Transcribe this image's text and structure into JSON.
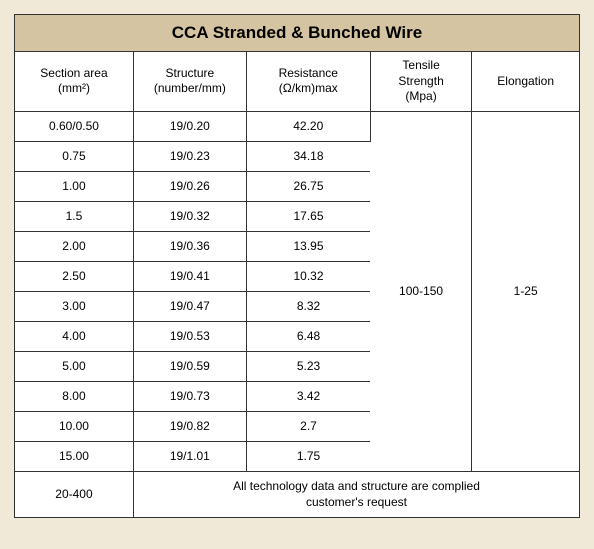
{
  "title": "CCA Stranded &  Bunched Wire",
  "columns": [
    {
      "label_line1": "Section area",
      "label_line2": "(mm²)"
    },
    {
      "label_line1": "Structure",
      "label_line2": "(number/mm)"
    },
    {
      "label_line1": "Resistance",
      "label_line2": "(Ω/km)max"
    },
    {
      "label_line1": "Tensile",
      "label_line2": "Strength",
      "label_line3": "(Mpa)"
    },
    {
      "label_line1": "Elongation",
      "label_line2": ""
    }
  ],
  "rows": [
    {
      "section": "0.60/0.50",
      "structure": "19/0.20",
      "resistance": "42.20"
    },
    {
      "section": "0.75",
      "structure": "19/0.23",
      "resistance": "34.18"
    },
    {
      "section": "1.00",
      "structure": "19/0.26",
      "resistance": "26.75"
    },
    {
      "section": "1.5",
      "structure": "19/0.32",
      "resistance": "17.65"
    },
    {
      "section": "2.00",
      "structure": "19/0.36",
      "resistance": "13.95"
    },
    {
      "section": "2.50",
      "structure": "19/0.41",
      "resistance": "10.32"
    },
    {
      "section": "3.00",
      "structure": "19/0.47",
      "resistance": "8.32"
    },
    {
      "section": "4.00",
      "structure": "19/0.53",
      "resistance": "6.48"
    },
    {
      "section": "5.00",
      "structure": "19/0.59",
      "resistance": "5.23"
    },
    {
      "section": "8.00",
      "structure": "19/0.73",
      "resistance": "3.42"
    },
    {
      "section": "10.00",
      "structure": "19/0.82",
      "resistance": "2.7"
    },
    {
      "section": "15.00",
      "structure": "19/1.01",
      "resistance": "1.75"
    }
  ],
  "tensile": "100-150",
  "elongation": "1-25",
  "footer": {
    "section": "20-400",
    "note_line1": "All technology data and structure are complied",
    "note_line2": "customer's request"
  },
  "style": {
    "title_bg": "#d5c4a1",
    "page_bg": "#f0e9d8",
    "cell_bg": "#ffffff",
    "border_color": "#333333",
    "text_color": "#000000",
    "title_fontsize": 17,
    "cell_fontsize": 12,
    "header_fontsize": 12
  }
}
